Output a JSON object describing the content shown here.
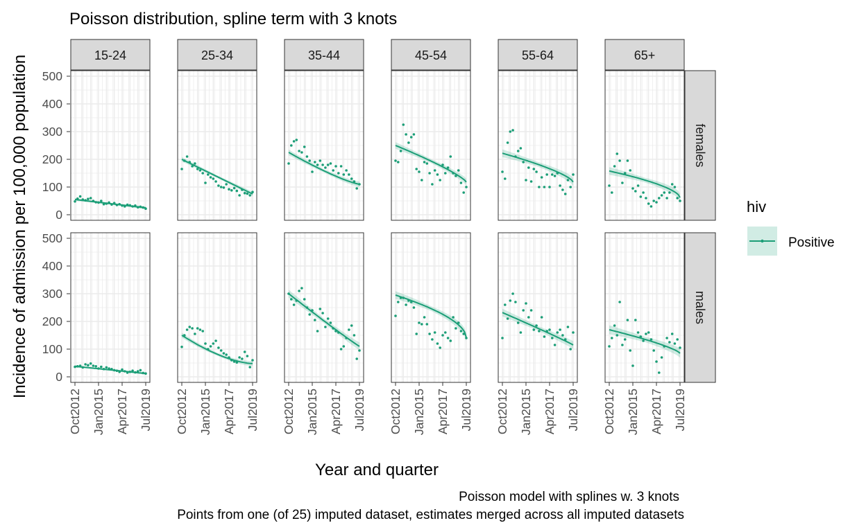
{
  "chart_data": {
    "type": "line",
    "title": "Poisson distribution, spline term with 3 knots",
    "xlabel": "Year and quarter",
    "ylabel": "Incidence of admission per 100,000 population",
    "caption": [
      "Poisson model with splines w. 3 knots",
      "Points from one (of 25) imputed dataset, estimates merged across all imputed datasets"
    ],
    "legend": {
      "title": "hiv",
      "entries": [
        "Positive"
      ],
      "position": "right"
    },
    "colors": {
      "series": "#1b9e77",
      "ribbon": "#1b9e77",
      "strip_bg": "#d9d9d9",
      "grid": "#ebebeb"
    },
    "facet_cols": [
      "15-24",
      "25-34",
      "35-44",
      "45-54",
      "55-64",
      "65+"
    ],
    "facet_rows": [
      "females",
      "males"
    ],
    "x_ticks": [
      "Oct2012",
      "Jan2015",
      "Apr2017",
      "Jul2019"
    ],
    "x_range": [
      "2012 Q4",
      "2019 Q3"
    ],
    "x_quarters": 28,
    "y_ticks": [
      0,
      100,
      200,
      300,
      400,
      500
    ],
    "ylim": [
      0,
      500
    ],
    "grid": true,
    "panels": [
      {
        "sex": "females",
        "age": "15-24",
        "fit": {
          "start": 55,
          "end": 25,
          "shape": 1.0
        },
        "ribbon_halfwidth": 5,
        "points": [
          48,
          58,
          66,
          55,
          52,
          57,
          60,
          50,
          45,
          44,
          50,
          38,
          40,
          44,
          37,
          42,
          35,
          38,
          33,
          30,
          36,
          34,
          30,
          33,
          27,
          29,
          26,
          22
        ]
      },
      {
        "sex": "females",
        "age": "25-34",
        "fit": {
          "start": 200,
          "end": 75,
          "shape": 1.0
        },
        "ribbon_halfwidth": 8,
        "points": [
          165,
          195,
          210,
          190,
          175,
          185,
          165,
          160,
          150,
          115,
          145,
          135,
          130,
          120,
          105,
          100,
          98,
          110,
          92,
          88,
          96,
          86,
          70,
          90,
          78,
          76,
          70,
          82
        ]
      },
      {
        "sex": "females",
        "age": "35-44",
        "fit": {
          "start": 225,
          "end": 110,
          "shape": 1.25
        },
        "ribbon_halfwidth": 10,
        "points": [
          185,
          250,
          265,
          270,
          230,
          225,
          245,
          210,
          195,
          155,
          190,
          180,
          195,
          180,
          170,
          180,
          185,
          160,
          175,
          150,
          175,
          145,
          160,
          145,
          130,
          120,
          95,
          110
        ]
      },
      {
        "sex": "females",
        "age": "45-54",
        "fit": {
          "start": 250,
          "end": 118,
          "shape": 0.8
        },
        "ribbon_halfwidth": 12,
        "points": [
          195,
          190,
          230,
          325,
          290,
          260,
          280,
          290,
          165,
          155,
          125,
          190,
          185,
          150,
          110,
          160,
          145,
          125,
          180,
          150,
          170,
          210,
          150,
          140,
          160,
          115,
          80,
          100
        ]
      },
      {
        "sex": "females",
        "age": "55-64",
        "fit": {
          "start": 222,
          "end": 118,
          "shape": 0.7
        },
        "ribbon_halfwidth": 14,
        "points": [
          155,
          130,
          260,
          300,
          305,
          210,
          230,
          240,
          190,
          125,
          170,
          120,
          165,
          155,
          100,
          135,
          100,
          145,
          100,
          145,
          140,
          150,
          105,
          90,
          75,
          125,
          100,
          145
        ]
      },
      {
        "sex": "females",
        "age": "65+",
        "fit": {
          "start": 158,
          "end": 62,
          "shape": 0.6
        },
        "ribbon_halfwidth": 14,
        "points": [
          105,
          80,
          175,
          220,
          195,
          115,
          150,
          195,
          160,
          95,
          85,
          105,
          65,
          80,
          60,
          40,
          30,
          50,
          45,
          60,
          70,
          80,
          60,
          80,
          110,
          100,
          60,
          50
        ]
      }
    ],
    "panels_males": [
      {
        "sex": "males",
        "age": "15-24",
        "fit": {
          "start": 38,
          "end": 12,
          "shape": 1.0
        },
        "ribbon_halfwidth": 4,
        "points": [
          36,
          38,
          40,
          34,
          45,
          42,
          48,
          40,
          38,
          30,
          36,
          28,
          34,
          30,
          28,
          24,
          22,
          18,
          26,
          20,
          15,
          18,
          22,
          16,
          20,
          24,
          14,
          12
        ]
      },
      {
        "sex": "males",
        "age": "25-34",
        "fit": {
          "start": 150,
          "end": 48,
          "shape": 1.6
        },
        "ribbon_halfwidth": 9,
        "points": [
          108,
          150,
          170,
          180,
          175,
          155,
          175,
          170,
          165,
          120,
          100,
          110,
          120,
          130,
          105,
          95,
          85,
          80,
          70,
          60,
          55,
          52,
          70,
          65,
          90,
          75,
          35,
          60
        ]
      },
      {
        "sex": "males",
        "age": "35-44",
        "fit": {
          "start": 300,
          "end": 110,
          "shape": 1.05
        },
        "ribbon_halfwidth": 14,
        "points": [
          300,
          280,
          260,
          275,
          310,
          320,
          280,
          250,
          225,
          240,
          205,
          165,
          245,
          230,
          180,
          210,
          195,
          175,
          165,
          160,
          100,
          110,
          140,
          170,
          185,
          150,
          65,
          95
        ]
      },
      {
        "sex": "males",
        "age": "45-54",
        "fit": {
          "start": 295,
          "end": 142,
          "shape": 0.55
        },
        "ribbon_halfwidth": 14,
        "points": [
          220,
          270,
          285,
          285,
          260,
          275,
          270,
          250,
          155,
          195,
          190,
          215,
          190,
          155,
          135,
          160,
          120,
          105,
          150,
          160,
          140,
          130,
          215,
          175,
          195,
          165,
          155,
          140
        ]
      },
      {
        "sex": "males",
        "age": "55-64",
        "fit": {
          "start": 232,
          "end": 115,
          "shape": 0.95
        },
        "ribbon_halfwidth": 14,
        "points": [
          140,
          260,
          210,
          275,
          300,
          270,
          195,
          160,
          240,
          265,
          215,
          240,
          170,
          185,
          165,
          215,
          145,
          165,
          170,
          140,
          115,
          160,
          170,
          150,
          135,
          180,
          100,
          160
        ]
      },
      {
        "sex": "males",
        "age": "65+",
        "fit": {
          "start": 170,
          "end": 85,
          "shape": 0.75
        },
        "ribbon_halfwidth": 16,
        "points": [
          110,
          140,
          185,
          150,
          270,
          115,
          135,
          205,
          95,
          40,
          205,
          160,
          145,
          130,
          155,
          160,
          135,
          95,
          55,
          15,
          70,
          110,
          140,
          125,
          155,
          120,
          135,
          105
        ]
      }
    ]
  }
}
